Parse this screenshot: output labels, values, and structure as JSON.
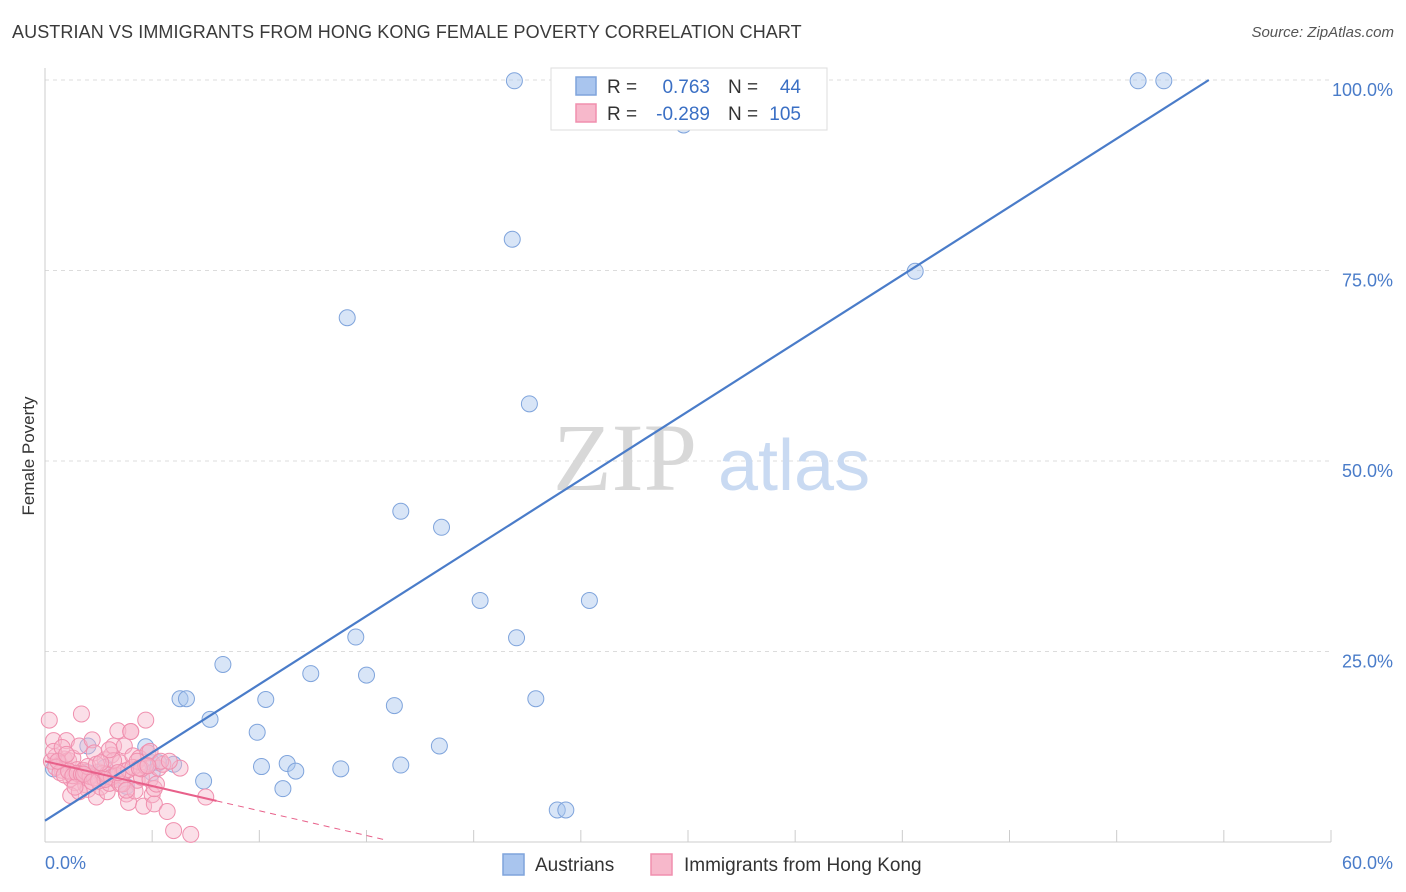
{
  "header": {
    "title": "AUSTRIAN VS IMMIGRANTS FROM HONG KONG FEMALE POVERTY CORRELATION CHART",
    "source": "Source: ZipAtlas.com"
  },
  "watermark": {
    "zip": "ZIP",
    "atlas": "atlas"
  },
  "stats": {
    "r_label": "R =",
    "n_label": "N =",
    "rows": [
      {
        "r": "0.763",
        "n": "44",
        "color": "#a9c5ee"
      },
      {
        "r": "-0.289",
        "n": "105",
        "color": "#f7b8cb"
      }
    ]
  },
  "legend": {
    "items": [
      {
        "label": "Austrians",
        "color": "#a9c5ee"
      },
      {
        "label": "Immigrants from Hong Kong",
        "color": "#f7b8cb"
      }
    ]
  },
  "chart_data": {
    "type": "scatter",
    "title": "AUSTRIAN VS IMMIGRANTS FROM HONG KONG FEMALE POVERTY CORRELATION CHART",
    "xlabel": "",
    "ylabel": "Female Poverty",
    "xlim": [
      0,
      60
    ],
    "ylim": [
      0,
      100
    ],
    "x_tick_labels": [
      "0.0%",
      "60.0%"
    ],
    "y_ticks": [
      25,
      50,
      75,
      100
    ],
    "y_tick_labels": [
      "25.0%",
      "50.0%",
      "75.0%",
      "100.0%"
    ],
    "grid": true,
    "colors": {
      "austrians": "#4a7cc9",
      "hongkong": "#e8608a"
    },
    "series": [
      {
        "name": "Austrians",
        "x": [
          21.9,
          29.8,
          51.0,
          52.2,
          21.8,
          40.6,
          14.1,
          22.6,
          16.6,
          18.5,
          20.3,
          25.4,
          22.0,
          14.5,
          12.4,
          8.3,
          16.3,
          15.0,
          10.3,
          22.9,
          6.3,
          6.6,
          7.7,
          9.9,
          11.3,
          10.1,
          13.8,
          4.7,
          5.0,
          5.3,
          5.0,
          7.4,
          18.4,
          16.6,
          23.9,
          24.3,
          2.0,
          3.8,
          6.0,
          11.7,
          11.1,
          2.8,
          2.0,
          0.4
        ],
        "y": [
          99.9,
          94.1,
          99.9,
          99.9,
          79.1,
          74.9,
          68.8,
          57.5,
          43.4,
          41.3,
          31.7,
          31.7,
          26.8,
          26.9,
          22.1,
          23.3,
          17.9,
          21.9,
          18.7,
          18.8,
          18.8,
          18.8,
          16.1,
          14.4,
          10.3,
          9.9,
          9.6,
          12.5,
          10.4,
          10.4,
          9.1,
          8.0,
          12.6,
          10.1,
          4.2,
          4.2,
          9.1,
          7.3,
          10.2,
          9.3,
          7.0,
          9.8,
          12.6,
          9.6
        ],
        "trend": {
          "x": [
            0,
            54.3
          ],
          "y": [
            2.8,
            100
          ]
        }
      },
      {
        "name": "Immigrants from Hong Kong",
        "x": [
          0.2,
          0.4,
          0.5,
          0.6,
          0.7,
          0.8,
          0.9,
          1.0,
          1.1,
          1.2,
          1.3,
          1.4,
          1.5,
          1.6,
          1.7,
          1.8,
          1.9,
          2.0,
          2.1,
          2.2,
          2.3,
          2.4,
          2.5,
          2.6,
          2.7,
          2.8,
          2.9,
          3.0,
          3.1,
          3.2,
          3.3,
          3.4,
          3.5,
          3.6,
          3.7,
          3.8,
          3.9,
          4.0,
          4.1,
          4.2,
          4.3,
          4.4,
          4.5,
          4.6,
          4.7,
          4.8,
          4.9,
          5.0,
          5.1,
          5.3,
          5.5,
          5.7,
          6.0,
          6.3,
          6.8,
          7.5,
          0.3,
          0.5,
          0.7,
          0.9,
          1.1,
          1.3,
          1.5,
          1.7,
          1.9,
          2.1,
          2.3,
          2.5,
          2.7,
          2.9,
          3.1,
          3.3,
          3.5,
          3.7,
          3.9,
          4.1,
          4.3,
          4.5,
          4.7,
          4.9,
          5.1,
          5.4,
          5.8,
          0.4,
          0.8,
          1.2,
          1.6,
          2.0,
          2.4,
          2.8,
          3.2,
          3.6,
          4.0,
          4.4,
          4.8,
          5.2,
          0.6,
          1.0,
          1.4,
          1.8,
          2.2,
          2.6,
          3.0,
          3.4,
          3.8
        ],
        "y": [
          16.0,
          13.3,
          11.2,
          10.6,
          10.2,
          9.4,
          10.9,
          13.3,
          10.7,
          8.3,
          11.0,
          7.8,
          9.5,
          12.6,
          16.8,
          9.4,
          7.5,
          6.9,
          8.6,
          13.4,
          11.7,
          5.9,
          9.2,
          7.2,
          8.3,
          10.8,
          6.6,
          7.7,
          11.4,
          12.6,
          8.2,
          14.6,
          10.4,
          8.7,
          12.6,
          6.3,
          5.2,
          14.5,
          11.3,
          6.7,
          8.1,
          11.0,
          8.5,
          4.7,
          16.0,
          11.7,
          8.2,
          6.2,
          5.0,
          9.7,
          10.2,
          4.0,
          1.5,
          9.7,
          1.0,
          5.9,
          10.6,
          9.8,
          9.1,
          8.8,
          9.3,
          8.7,
          9.0,
          8.9,
          9.2,
          8.6,
          8.4,
          8.0,
          9.0,
          8.9,
          8.5,
          8.8,
          7.6,
          9.3,
          9.5,
          9.8,
          10.6,
          9.6,
          10.0,
          11.9,
          7.0,
          10.6,
          10.6,
          11.9,
          12.4,
          6.1,
          6.6,
          9.9,
          10.2,
          8.2,
          10.7,
          7.6,
          14.5,
          9.7,
          10.0,
          7.6,
          10.6,
          11.5,
          7.2,
          8.9,
          7.9,
          10.4,
          12.1,
          9.1,
          6.8
        ],
        "trend": {
          "x": [
            0,
            8.0
          ],
          "y": [
            10.6,
            5.4
          ]
        },
        "trend_ext": {
          "x": [
            8.0,
            16.0
          ],
          "y": [
            5.4,
            0.2
          ]
        }
      }
    ]
  }
}
